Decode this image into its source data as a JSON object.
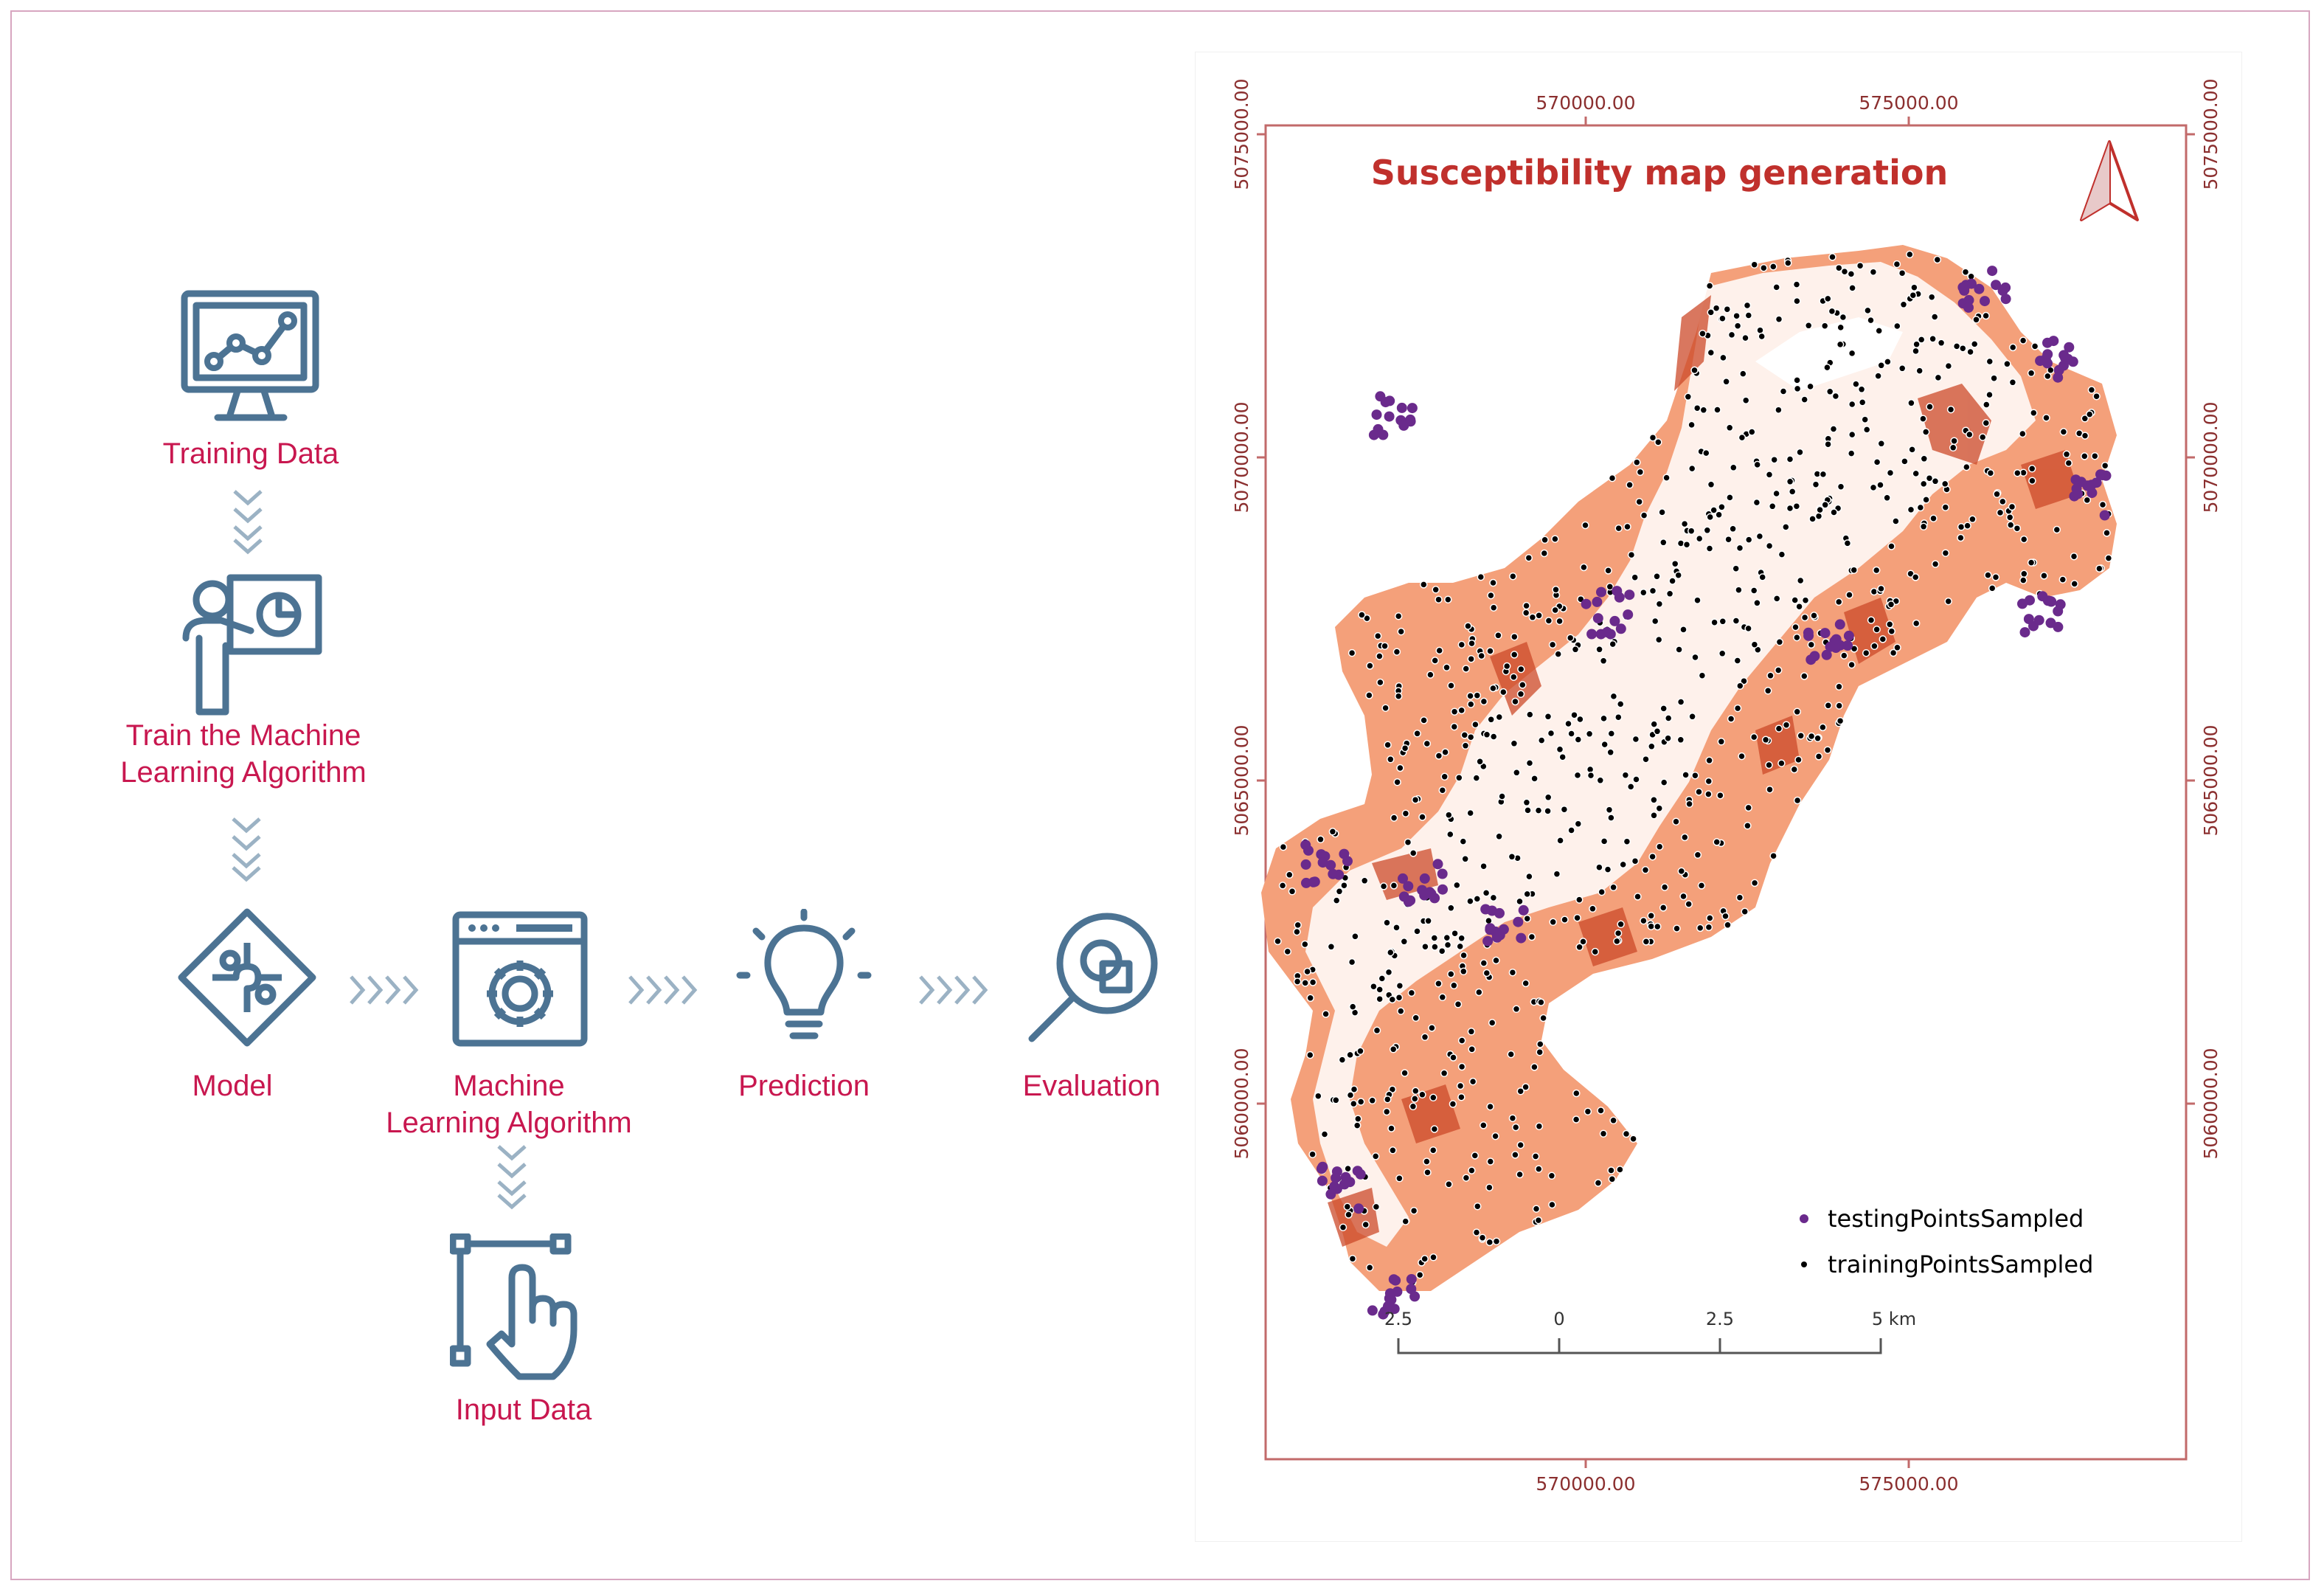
{
  "workflow": {
    "training_data": "Training Data",
    "train_algorithm_line1": "Train the Machine",
    "train_algorithm_line2": "Learning Algorithm",
    "model": "Model",
    "ml_algorithm_line1": "Machine",
    "ml_algorithm_line2": "Learning Algorithm",
    "prediction": "Prediction",
    "evaluation": "Evaluation",
    "input_data": "Input Data",
    "icon_color": "#4c7393",
    "label_color": "#c8174f",
    "chevron_color": "#9bb2c4"
  },
  "map": {
    "title": "Susceptibility map generation",
    "x_ticks": [
      "570000.00",
      "575000.00"
    ],
    "y_ticks": [
      "5075000.00",
      "5070000.00",
      "5065000.00",
      "5060000.00"
    ],
    "legend": [
      {
        "label": "testingPointsSampled",
        "color": "#6a2a8c"
      },
      {
        "label": "trainingPointsSampled",
        "color": "#000000"
      }
    ],
    "scale_labels": [
      "2.5",
      "0",
      "2.5",
      "5 km"
    ],
    "colors": {
      "frame": "#c26a6a",
      "title": "#c0302c",
      "fill_light": "#f4a07a",
      "fill_dark": "#cc4a2a",
      "tick_text": "#8b2f2f"
    }
  }
}
